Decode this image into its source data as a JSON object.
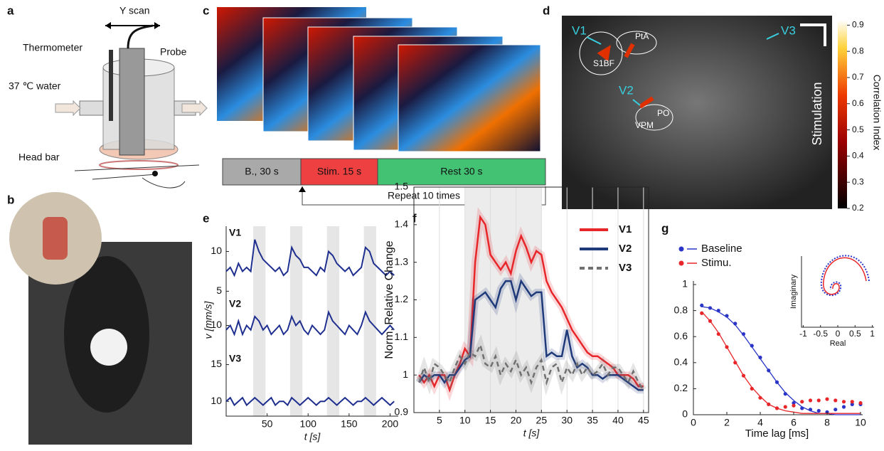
{
  "panel_labels": [
    "a",
    "b",
    "c",
    "d",
    "e",
    "f",
    "g"
  ],
  "panel_a": {
    "scan": "Y scan",
    "thermometer": "Thermometer",
    "probe": "Probe",
    "water": "37 ℃ water",
    "head_bar": "Head bar"
  },
  "panel_c": {
    "baseline": "B., 30 s",
    "stim": "Stim. 15 s",
    "rest": "Rest 30 s",
    "repeat": "Repeat 10 times"
  },
  "panel_d": {
    "labels": [
      "V1",
      "V2",
      "V3",
      "PtA",
      "S1BF",
      "PO",
      "VPM"
    ],
    "side_label": "Stimulation",
    "colorbar": {
      "title": "Correlation Index",
      "ylim": [
        0.2,
        0.92
      ],
      "yticks": [
        0.2,
        0.3,
        0.4,
        0.5,
        0.6,
        0.7,
        0.8,
        0.9
      ]
    }
  },
  "chart_data": [
    {
      "type": "line",
      "xlabel": "t [s]",
      "ylabel": "v [mm/s]",
      "color": "#1f2f8f",
      "x": [
        0,
        5,
        10,
        15,
        20,
        25,
        30,
        35,
        40,
        45,
        50,
        55,
        60,
        65,
        70,
        75,
        80,
        85,
        90,
        95,
        100,
        105,
        110,
        115,
        120,
        125,
        130,
        135,
        140,
        145,
        150,
        155,
        160,
        165,
        170,
        175,
        180,
        185,
        190,
        195,
        200,
        205
      ],
      "xlim": [
        0,
        210
      ],
      "xticks": [
        50,
        100,
        150,
        200
      ],
      "panels": [
        {
          "name": "V1",
          "ylim": [
            4.5,
            13
          ],
          "yticks": [
            5,
            10
          ],
          "values": [
            7.5,
            8,
            7,
            8.5,
            7.5,
            8,
            7.5,
            11.5,
            10,
            9,
            8.5,
            8,
            7.5,
            8,
            7,
            7.5,
            10.5,
            9.5,
            9,
            8,
            8,
            7.5,
            7,
            8,
            7.5,
            10,
            9.5,
            8.5,
            8,
            7.5,
            8,
            7,
            7.5,
            8,
            10.5,
            10,
            8.5,
            8,
            7.5,
            7,
            7.5,
            7
          ]
        },
        {
          "name": "V2",
          "ylim": [
            7,
            13
          ],
          "yticks": [
            10
          ],
          "values": [
            9.5,
            10,
            9,
            10.5,
            9,
            10,
            9.5,
            11,
            10.5,
            9.5,
            10,
            9,
            9.5,
            10,
            9,
            9.5,
            11,
            10,
            10.5,
            9.5,
            9,
            10,
            9.5,
            9,
            9.5,
            11.5,
            10.5,
            10,
            9.5,
            9,
            10,
            9.5,
            9,
            10,
            11.5,
            10.5,
            10,
            9.5,
            9,
            9.5,
            10,
            9.5
          ]
        },
        {
          "name": "V3",
          "ylim": [
            8,
            16.5
          ],
          "yticks": [
            10,
            15
          ],
          "values": [
            10,
            10.5,
            9.5,
            10,
            10.5,
            9.5,
            10,
            10.5,
            10,
            9.5,
            10,
            10.5,
            9.5,
            10,
            10,
            9.5,
            10.5,
            10,
            9.5,
            10,
            10.5,
            10,
            9.5,
            10,
            10,
            10.5,
            10,
            9.5,
            10,
            10.5,
            10,
            9.5,
            10,
            10,
            10.5,
            10,
            9.5,
            10,
            10.5,
            10,
            9.5,
            10
          ]
        }
      ]
    },
    {
      "type": "line",
      "xlabel": "t [s]",
      "ylabel": "Norm. Relative Change",
      "x": [
        1,
        2,
        3,
        4,
        5,
        6,
        7,
        8,
        9,
        10,
        11,
        12,
        13,
        14,
        15,
        16,
        17,
        18,
        19,
        20,
        21,
        22,
        23,
        24,
        25,
        26,
        27,
        28,
        29,
        30,
        31,
        32,
        33,
        34,
        35,
        36,
        37,
        38,
        39,
        40,
        41,
        42,
        43,
        44,
        45
      ],
      "xlim": [
        0,
        46
      ],
      "xticks": [
        5,
        10,
        15,
        20,
        25,
        30,
        35,
        40,
        45
      ],
      "ylim": [
        0.9,
        1.5
      ],
      "yticks": [
        0.9,
        1,
        1.1,
        1.2,
        1.3,
        1.4,
        1.5
      ],
      "grid": true,
      "series": [
        {
          "name": "V1",
          "color": "#e8262a",
          "values": [
            1.0,
            0.98,
            1.0,
            0.97,
            1.0,
            1.0,
            0.96,
            1.0,
            1.03,
            1.07,
            1.05,
            1.3,
            1.42,
            1.4,
            1.32,
            1.3,
            1.28,
            1.3,
            1.27,
            1.33,
            1.37,
            1.34,
            1.3,
            1.33,
            1.32,
            1.25,
            1.22,
            1.2,
            1.18,
            1.15,
            1.12,
            1.1,
            1.08,
            1.06,
            1.05,
            1.05,
            1.04,
            1.03,
            1.02,
            1.0,
            1.0,
            1.0,
            0.99,
            0.97,
            0.97
          ]
        },
        {
          "name": "V2",
          "color": "#1f3a7a",
          "values": [
            0.98,
            1.0,
            0.99,
            1.0,
            1.0,
            0.98,
            1.0,
            1.0,
            1.02,
            1.04,
            1.05,
            1.2,
            1.21,
            1.22,
            1.2,
            1.18,
            1.23,
            1.25,
            1.25,
            1.2,
            1.25,
            1.23,
            1.21,
            1.22,
            1.22,
            1.05,
            1.06,
            1.05,
            1.05,
            1.12,
            1.05,
            1.02,
            1.03,
            1.02,
            1.0,
            1.0,
            0.99,
            1.0,
            1.0,
            1.0,
            0.99,
            0.98,
            0.97,
            0.96,
            0.96
          ]
        },
        {
          "name": "V3",
          "color": "#707070",
          "dashed": true,
          "values": [
            0.98,
            1.02,
            0.98,
            1.03,
            1.02,
            1.0,
            0.98,
            1.02,
            1.05,
            1.03,
            1.06,
            1.05,
            1.08,
            1.03,
            1.02,
            1.05,
            1.0,
            1.03,
            1.01,
            1.04,
            1.0,
            1.02,
            0.98,
            1.02,
            1.04,
            0.98,
            1.02,
            1.03,
            0.98,
            1.02,
            1.0,
            1.03,
            1.0,
            1.02,
            1.0,
            1.01,
            1.03,
            1.0,
            1.02,
            1.02,
            1.0,
            0.98,
            1.01,
            0.98,
            0.96
          ]
        }
      ]
    },
    {
      "type": "scatter",
      "xlabel": "Time lag [ms]",
      "x": [
        0.5,
        1,
        1.5,
        2,
        2.5,
        3,
        3.5,
        4,
        4.5,
        5,
        5.5,
        6,
        6.5,
        7,
        7.5,
        8,
        8.5,
        9,
        9.5,
        10
      ],
      "xlim": [
        0,
        10
      ],
      "xticks": [
        0,
        2,
        4,
        6,
        8,
        10
      ],
      "ylim": [
        0,
        1
      ],
      "yticks": [
        0,
        0.2,
        0.4,
        0.6,
        0.8,
        1
      ],
      "series": [
        {
          "name": "Baseline",
          "color": "#2a35c8",
          "values": [
            0.84,
            0.82,
            0.8,
            0.76,
            0.7,
            0.62,
            0.53,
            0.44,
            0.34,
            0.25,
            0.16,
            0.09,
            0.05,
            0.04,
            0.03,
            0.02,
            0.04,
            0.06,
            0.08,
            0.08
          ],
          "fit": [
            0.83,
            0.82,
            0.79,
            0.75,
            0.69,
            0.61,
            0.52,
            0.43,
            0.34,
            0.25,
            0.17,
            0.11,
            0.06,
            0.03,
            0.01,
            0.01,
            0,
            0,
            0,
            0
          ]
        },
        {
          "name": "Stimu.",
          "color": "#e8262a",
          "values": [
            0.78,
            0.72,
            0.62,
            0.52,
            0.4,
            0.3,
            0.2,
            0.13,
            0.08,
            0.05,
            0.06,
            0.07,
            0.1,
            0.11,
            0.11,
            0.12,
            0.11,
            0.1,
            0.1,
            0.09
          ],
          "fit": [
            0.79,
            0.72,
            0.63,
            0.52,
            0.41,
            0.3,
            0.21,
            0.14,
            0.08,
            0.05,
            0.03,
            0.02,
            0.01,
            0.01,
            0.01,
            0.01,
            0.01,
            0.01,
            0.01,
            0.01
          ]
        }
      ],
      "inset": {
        "xlabel": "Real",
        "ylabel": "Imaginary",
        "xlim": [
          -1.05,
          1.05
        ],
        "xticks": [
          -1,
          -0.5,
          0,
          0.5,
          1
        ]
      }
    }
  ]
}
